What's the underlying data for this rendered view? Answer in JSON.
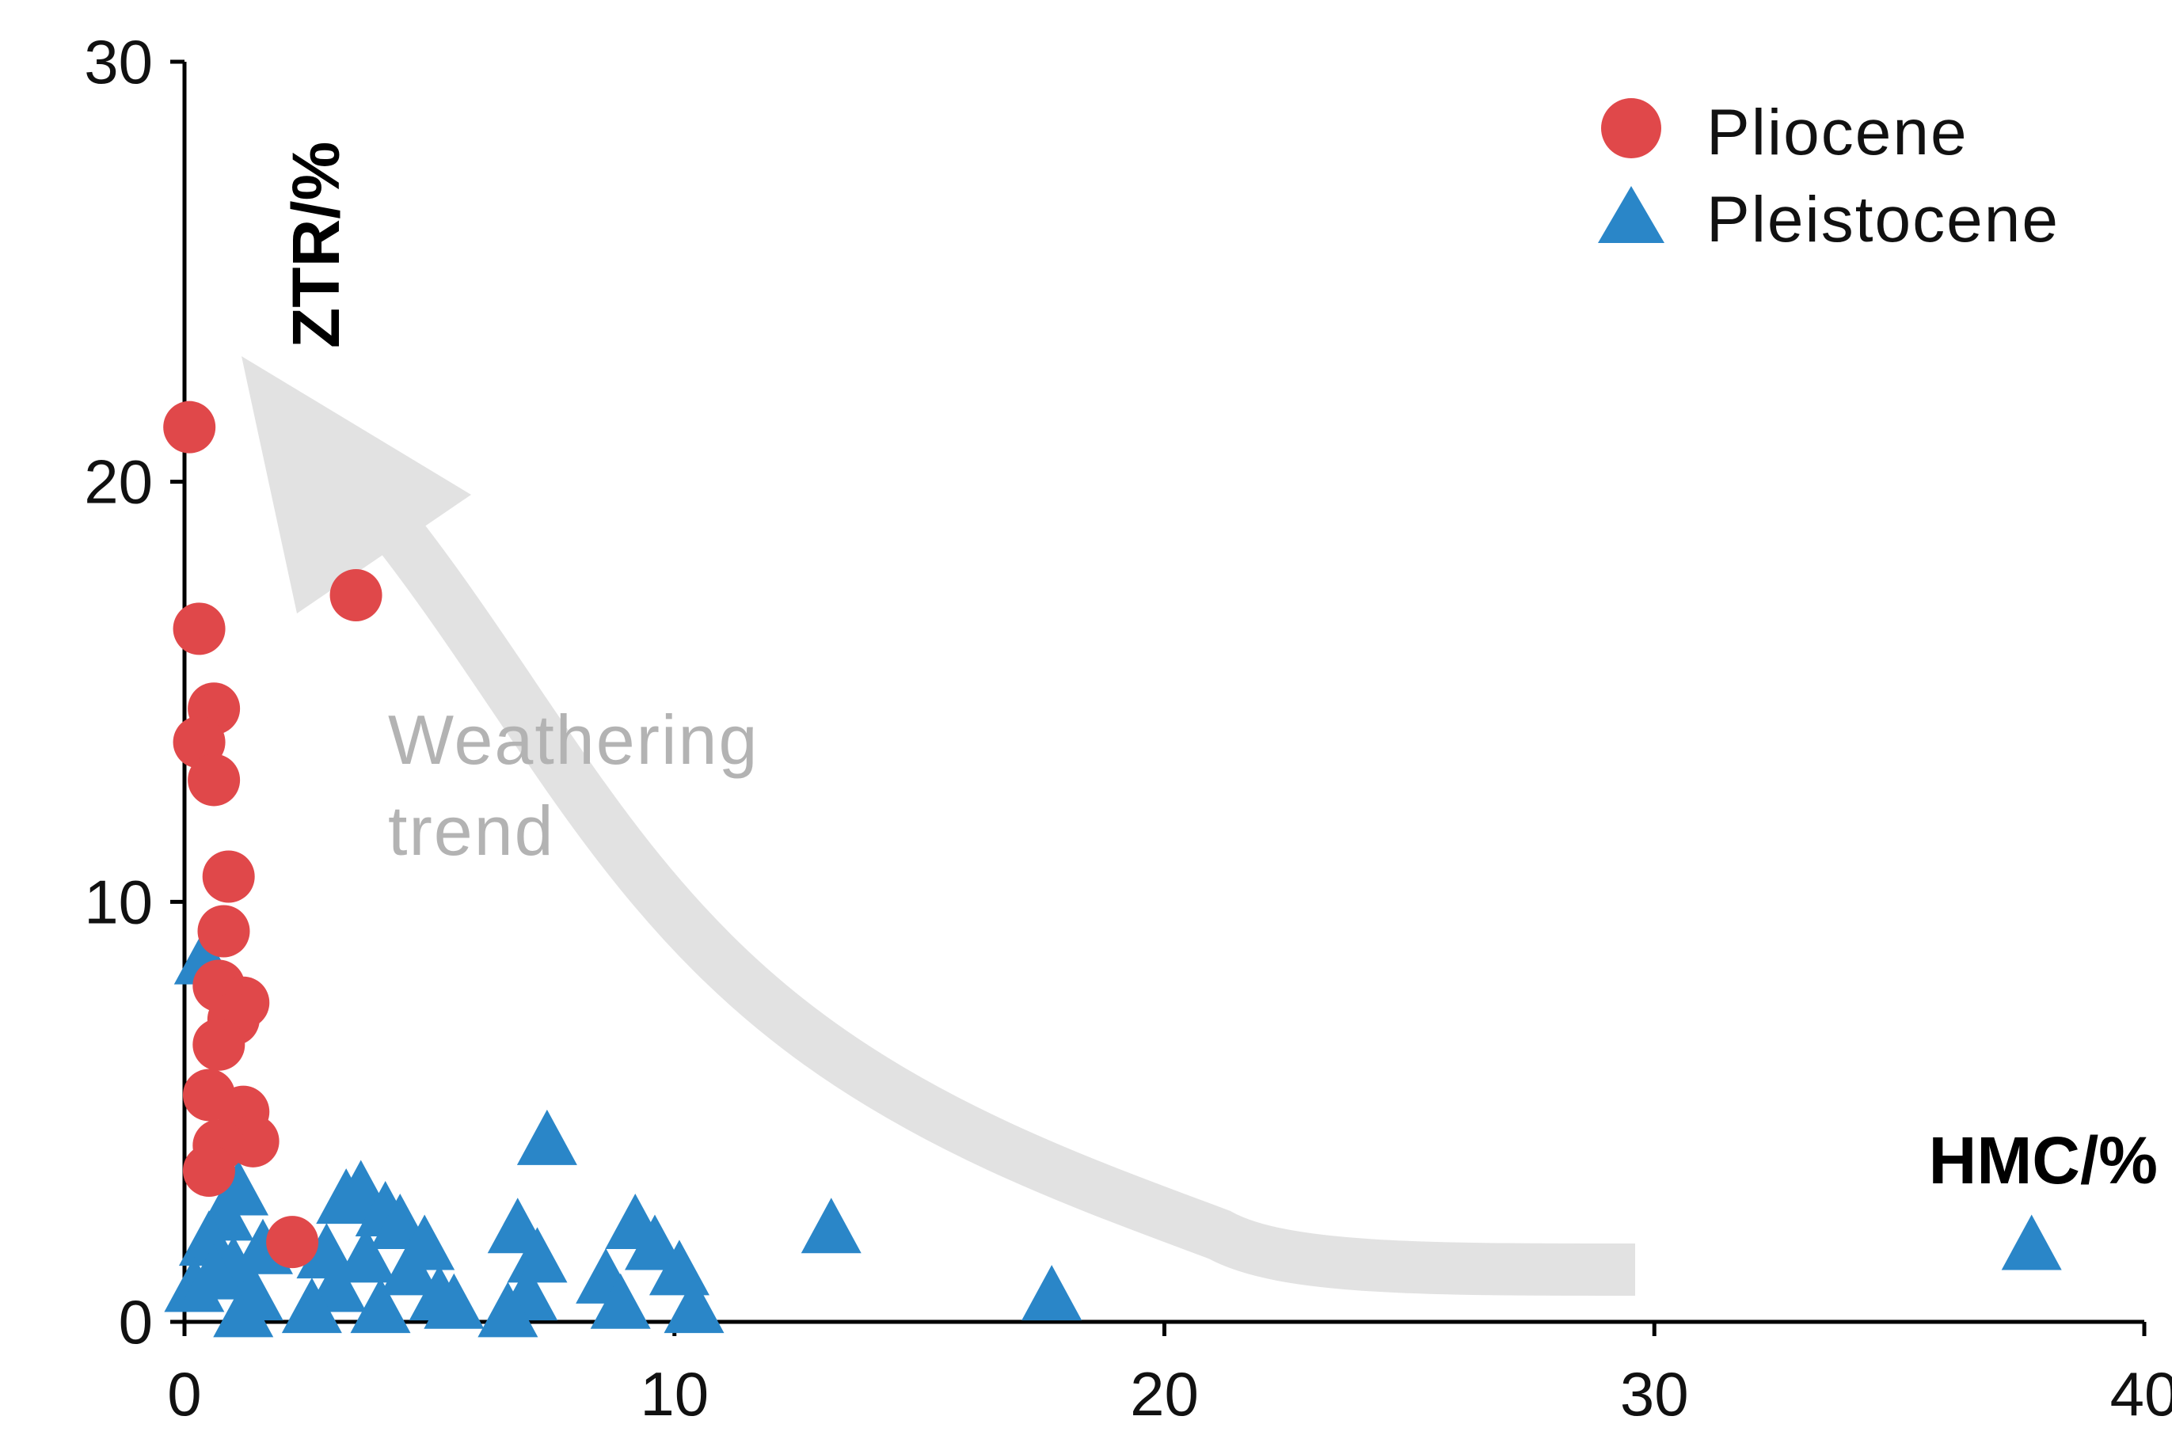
{
  "chart_data": {
    "type": "scatter",
    "xlabel": "HMC/%",
    "ylabel": "ZTR/%",
    "xlim": [
      0,
      40
    ],
    "ylim": [
      0,
      30
    ],
    "x_ticks": [
      "0",
      "10",
      "20",
      "30",
      "40"
    ],
    "y_ticks": [
      "0",
      "10",
      "20",
      "30"
    ],
    "grid": false,
    "legend_position": "top-right",
    "annotation": {
      "line1": "Weathering",
      "line2": "trend"
    },
    "colors": {
      "pliocene": "#e0484a",
      "pleistocene": "#2a86c8",
      "arrow": "#e2e2e2",
      "axis": "#000000"
    },
    "series": [
      {
        "name": "Pliocene",
        "marker": "circle",
        "points": [
          [
            0.1,
            21.3
          ],
          [
            3.5,
            17.3
          ],
          [
            0.3,
            16.5
          ],
          [
            0.6,
            14.6
          ],
          [
            0.3,
            13.8
          ],
          [
            0.6,
            12.9
          ],
          [
            0.9,
            10.6
          ],
          [
            0.8,
            9.3
          ],
          [
            0.7,
            8.0
          ],
          [
            1.2,
            7.6
          ],
          [
            1.0,
            7.2
          ],
          [
            0.7,
            6.6
          ],
          [
            0.5,
            5.4
          ],
          [
            1.2,
            5.0
          ],
          [
            1.4,
            4.3
          ],
          [
            0.7,
            4.2
          ],
          [
            0.5,
            3.6
          ],
          [
            2.2,
            1.9
          ]
        ]
      },
      {
        "name": "Pleistocene",
        "marker": "triangle",
        "points": [
          [
            0.4,
            8.6
          ],
          [
            0.8,
            2.5
          ],
          [
            1.1,
            3.1
          ],
          [
            0.5,
            1.9
          ],
          [
            1.0,
            1.3
          ],
          [
            0.2,
            0.8
          ],
          [
            1.4,
            0.6
          ],
          [
            1.2,
            0.2
          ],
          [
            0.6,
            1.1
          ],
          [
            1.6,
            1.7
          ],
          [
            3.3,
            2.9
          ],
          [
            3.6,
            3.1
          ],
          [
            4.1,
            2.6
          ],
          [
            4.4,
            2.3
          ],
          [
            2.9,
            1.6
          ],
          [
            3.1,
            0.8
          ],
          [
            3.7,
            1.5
          ],
          [
            4.6,
            1.2
          ],
          [
            5.2,
            0.6
          ],
          [
            5.5,
            0.4
          ],
          [
            2.6,
            0.3
          ],
          [
            4.0,
            0.3
          ],
          [
            4.9,
            1.8
          ],
          [
            6.8,
            2.2
          ],
          [
            7.2,
            1.5
          ],
          [
            7.0,
            0.6
          ],
          [
            6.6,
            0.2
          ],
          [
            7.4,
            4.3
          ],
          [
            8.6,
            1.0
          ],
          [
            8.9,
            0.4
          ],
          [
            9.2,
            2.3
          ],
          [
            9.6,
            1.8
          ],
          [
            10.1,
            1.2
          ],
          [
            10.4,
            0.3
          ],
          [
            13.2,
            2.2
          ],
          [
            17.7,
            0.6
          ],
          [
            37.7,
            1.8
          ]
        ]
      }
    ]
  }
}
